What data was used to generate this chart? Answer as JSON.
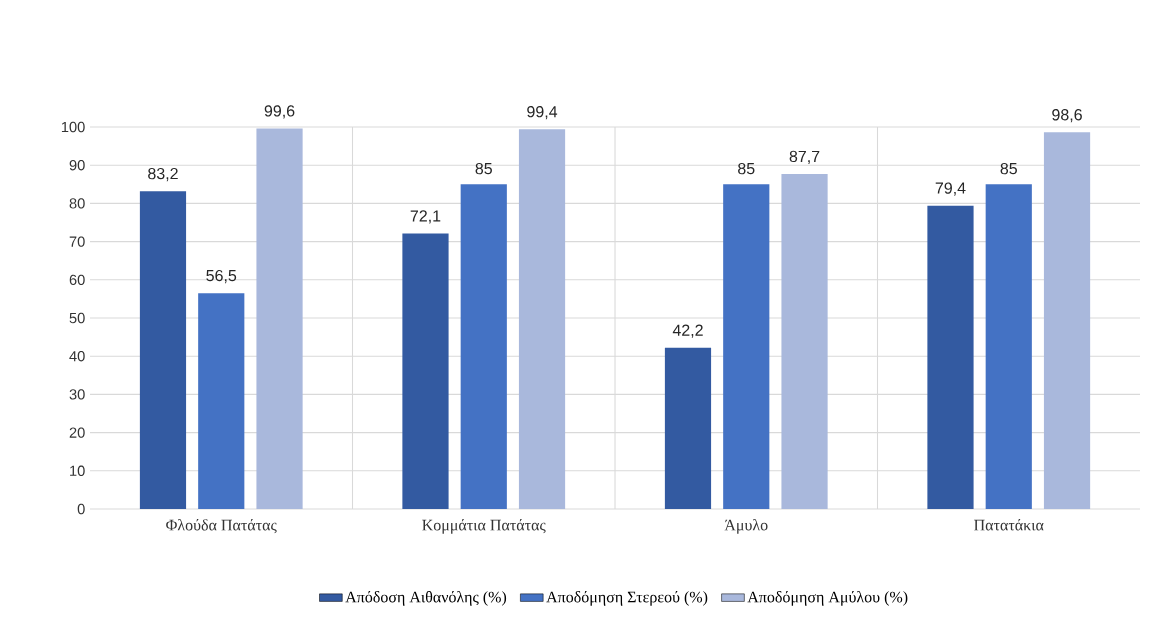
{
  "chart_data": {
    "type": "bar",
    "categories": [
      "Φλούδα Πατάτας",
      "Κομμάτια Πατάτας",
      "Άμυλο",
      "Πατατάκια"
    ],
    "series": [
      {
        "name": "Απόδοση Αιθανόλης (%)",
        "color": "#335aa1",
        "values": [
          83.2,
          72.1,
          42.2,
          79.4
        ],
        "value_labels": [
          "83,2",
          "72,1",
          "42,2",
          "79,4"
        ]
      },
      {
        "name": "Αποδόμηση Στερεού (%)",
        "color": "#4472c4",
        "values": [
          56.5,
          85,
          85,
          85
        ],
        "value_labels": [
          "56,5",
          "85",
          "85",
          "85"
        ]
      },
      {
        "name": "Αποδόμηση Αμύλου (%)",
        "color": "#a9b8dc",
        "values": [
          99.6,
          99.4,
          87.7,
          98.6
        ],
        "value_labels": [
          "99,6",
          "99,4",
          "87,7",
          "98,6"
        ]
      }
    ],
    "ylim": [
      0,
      100
    ],
    "yticks": [
      0,
      10,
      20,
      30,
      40,
      50,
      60,
      70,
      80,
      90,
      100
    ],
    "grid": true,
    "legend": "bottom"
  }
}
